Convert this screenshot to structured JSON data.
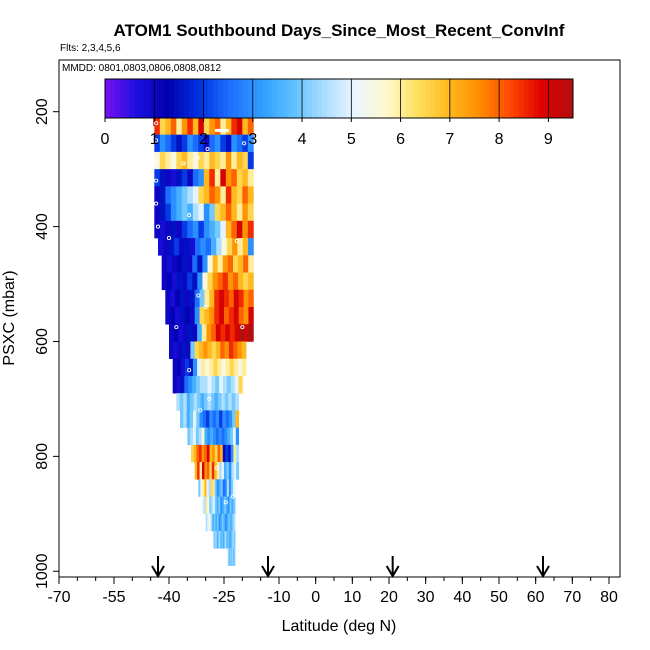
{
  "chart_data": {
    "type": "heatmap",
    "title": "ATOM1 Southbound Days_Since_Most_Recent_ConvInf",
    "flights_label": "Flts: 2,3,4,5,6",
    "dates_label": "MMDD: 0801,0803,0806,0808,0812",
    "xlabel": "Latitude (deg N)",
    "ylabel": "PSXC (mbar)",
    "xlim": [
      -70,
      83
    ],
    "ylim": [
      1010,
      110
    ],
    "x_ticks": [
      -70,
      -55,
      -40,
      -25,
      -10,
      0,
      10,
      20,
      30,
      40,
      50,
      60,
      70,
      80
    ],
    "y_ticks": [
      200,
      400,
      600,
      800,
      1000
    ],
    "colorbar": {
      "min": 0,
      "max": 9.5,
      "ticks": [
        0,
        1,
        2,
        3,
        4,
        5,
        6,
        7,
        8,
        9
      ],
      "colors": [
        "#7b0ff0",
        "#1e10e0",
        "#0000b0",
        "#0030e0",
        "#1e70ff",
        "#2f9cff",
        "#5cc0ff",
        "#a8dcff",
        "#eaf6ff",
        "#fff9d0",
        "#ffe060",
        "#ffba20",
        "#ff8e00",
        "#ff4800",
        "#e00000",
        "#b20f0f"
      ]
    },
    "arrows_lat": [
      -43,
      -13,
      21,
      62
    ],
    "curtain": {
      "lat_range": [
        -44,
        -16
      ],
      "rows": [
        {
          "p": 225,
          "lat_min": -44,
          "lat_max": -17,
          "values": [
            8.5,
            6.5,
            7.0,
            8.0,
            6.0,
            7.5,
            8.5,
            7.0,
            9.0,
            6.5,
            7.5,
            8.0,
            6.0,
            7.0,
            8.5,
            9.0,
            7.0,
            8.0
          ]
        },
        {
          "p": 255,
          "lat_min": -44,
          "lat_max": -17,
          "values": [
            2.0,
            3.0,
            2.5,
            2.0,
            1.5,
            2.0,
            3.0,
            2.5,
            2.0,
            1.0,
            2.5,
            3.0,
            2.0,
            1.5,
            3.0,
            2.5,
            2.0,
            3.0
          ]
        },
        {
          "p": 285,
          "lat_min": -44,
          "lat_max": -17,
          "values": [
            5.5,
            6.5,
            6.0,
            5.5,
            6.5,
            7.0,
            6.0,
            5.5,
            6.5,
            6.0,
            7.0,
            6.5,
            6.0,
            7.5,
            6.0,
            7.0,
            6.5,
            2.0
          ]
        },
        {
          "p": 315,
          "lat_min": -44,
          "lat_max": -17,
          "values": [
            2.0,
            1.5,
            1.0,
            0.8,
            1.5,
            2.0,
            1.0,
            2.5,
            3.0,
            7.0,
            8.5,
            6.0,
            9.0,
            7.5,
            8.0,
            6.5,
            7.0,
            6.0
          ]
        },
        {
          "p": 345,
          "lat_min": -44,
          "lat_max": -17,
          "values": [
            1.0,
            1.5,
            2.5,
            3.0,
            3.5,
            4.0,
            4.5,
            5.0,
            6.5,
            7.0,
            8.0,
            7.5,
            6.0,
            8.5,
            7.0,
            6.5,
            8.0,
            7.0
          ]
        },
        {
          "p": 375,
          "lat_min": -44,
          "lat_max": -17,
          "values": [
            1.0,
            1.5,
            2.0,
            3.0,
            3.5,
            4.0,
            3.5,
            4.5,
            5.0,
            3.0,
            4.0,
            6.5,
            7.0,
            8.0,
            7.0,
            6.0,
            7.5,
            6.5
          ]
        },
        {
          "p": 405,
          "lat_min": -44,
          "lat_max": -17,
          "values": [
            1.0,
            0.8,
            1.0,
            1.5,
            1.0,
            2.0,
            2.5,
            3.0,
            2.0,
            3.0,
            3.5,
            4.0,
            5.0,
            7.0,
            8.0,
            9.0,
            7.5,
            8.5
          ]
        },
        {
          "p": 435,
          "lat_min": -43,
          "lat_max": -17,
          "values": [
            0.8,
            1.0,
            1.5,
            2.0,
            1.0,
            1.5,
            0.8,
            2.5,
            3.0,
            2.5,
            3.5,
            4.5,
            5.5,
            6.5,
            7.5,
            6.0,
            7.0,
            3.0
          ]
        },
        {
          "p": 465,
          "lat_min": -42,
          "lat_max": -17,
          "values": [
            1.0,
            0.8,
            1.0,
            1.2,
            1.5,
            1.0,
            2.5,
            1.5,
            3.0,
            5.5,
            7.0,
            6.0,
            7.5,
            8.0,
            6.5,
            7.0,
            8.0,
            6.0
          ]
        },
        {
          "p": 495,
          "lat_min": -42,
          "lat_max": -17,
          "values": [
            1.0,
            1.2,
            0.8,
            1.5,
            1.0,
            2.0,
            1.5,
            3.0,
            5.5,
            6.5,
            7.5,
            8.0,
            8.5,
            7.5,
            8.0,
            7.0,
            6.5,
            7.0
          ]
        },
        {
          "p": 525,
          "lat_min": -41,
          "lat_max": -17,
          "values": [
            1.0,
            0.8,
            1.2,
            1.5,
            1.0,
            1.5,
            2.5,
            4.0,
            6.0,
            7.0,
            8.5,
            9.0,
            8.5,
            8.0,
            9.0,
            8.5,
            7.5,
            8.0
          ]
        },
        {
          "p": 555,
          "lat_min": -41,
          "lat_max": -17,
          "values": [
            1.0,
            1.2,
            0.8,
            1.5,
            1.2,
            1.0,
            3.0,
            6.5,
            7.0,
            7.5,
            8.5,
            9.0,
            8.0,
            8.5,
            9.0,
            8.0,
            7.5,
            9.0
          ]
        },
        {
          "p": 585,
          "lat_min": -40,
          "lat_max": -17,
          "values": [
            1.0,
            1.2,
            0.8,
            1.0,
            1.5,
            1.0,
            3.5,
            6.0,
            7.5,
            8.0,
            9.0,
            8.5,
            9.0,
            8.5,
            9.0,
            9.5,
            9.2,
            9.5
          ]
        },
        {
          "p": 615,
          "lat_min": -40,
          "lat_max": -19,
          "values": [
            1.0,
            0.8,
            1.0,
            1.5,
            1.0,
            4.0,
            6.5,
            7.0,
            7.5,
            7.0,
            6.5,
            7.0,
            8.0,
            7.5,
            8.5,
            8.0,
            7.5,
            7.0
          ]
        },
        {
          "p": 645,
          "lat_min": -39,
          "lat_max": -19,
          "values": [
            1.0,
            1.2,
            0.8,
            2.0,
            1.5,
            3.0,
            5.0,
            6.0,
            5.5,
            6.0,
            6.5,
            6.0,
            5.5,
            6.0,
            6.5,
            6.0,
            5.5,
            6.0
          ]
        },
        {
          "p": 675,
          "lat_min": -39,
          "lat_max": -20,
          "values": [
            1.0,
            0.8,
            1.5,
            2.5,
            3.0,
            3.5,
            4.0,
            4.5,
            4.5,
            5.0,
            4.5,
            4.0,
            5.0,
            4.5,
            4.0,
            4.5,
            5.0,
            6.5
          ]
        },
        {
          "p": 705,
          "lat_min": -38,
          "lat_max": -21,
          "values": [
            4.5,
            4.0,
            4.5,
            3.5,
            4.0,
            4.5,
            4.0,
            3.5,
            4.0,
            4.5,
            4.0,
            3.5,
            4.0,
            4.5,
            4.0,
            4.5,
            4.0,
            4.5
          ]
        },
        {
          "p": 735,
          "lat_min": -37,
          "lat_max": -21,
          "values": [
            4.0,
            4.5,
            3.5,
            4.0,
            5.0,
            4.0,
            3.0,
            2.5,
            2.0,
            3.0,
            2.5,
            3.0,
            2.0,
            3.0,
            2.5,
            3.0,
            4.0,
            7.0
          ]
        },
        {
          "p": 765,
          "lat_min": -35,
          "lat_max": -21,
          "values": [
            4.0,
            4.5,
            5.0,
            4.0,
            4.5,
            5.5,
            3.5,
            3.0,
            3.5,
            3.0,
            2.5,
            3.0,
            2.5,
            3.0,
            3.5,
            4.0,
            5.0,
            3.0
          ]
        },
        {
          "p": 795,
          "lat_min": -34,
          "lat_max": -21,
          "values": [
            6.5,
            7.0,
            8.0,
            8.5,
            7.5,
            8.0,
            9.0,
            7.0,
            7.5,
            6.5,
            8.0,
            7.0,
            1.0,
            2.0,
            1.5,
            3.0,
            6.0,
            4.5
          ]
        },
        {
          "p": 825,
          "lat_min": -33,
          "lat_max": -21,
          "values": [
            7.0,
            8.5,
            6.0,
            9.0,
            7.5,
            8.0,
            6.5,
            8.5,
            7.0,
            6.0,
            4.5,
            5.0,
            3.5,
            4.0,
            3.0,
            4.5,
            5.0,
            4.0
          ]
        },
        {
          "p": 855,
          "lat_min": -32,
          "lat_max": -22,
          "values": [
            4.0,
            5.5,
            6.0,
            7.0,
            5.0,
            4.5,
            6.5,
            6.0,
            4.0,
            3.0,
            3.5,
            4.0,
            2.5,
            3.0,
            4.5,
            3.0,
            4.0,
            5.0
          ]
        },
        {
          "p": 885,
          "lat_min": -31,
          "lat_max": -22,
          "values": [
            5.0,
            4.5,
            6.0,
            5.5,
            4.0,
            4.5,
            5.0,
            4.0,
            3.5,
            4.0,
            3.0,
            3.5,
            4.0,
            3.5,
            3.0,
            4.0,
            3.5,
            4.0
          ]
        },
        {
          "p": 915,
          "lat_min": -30,
          "lat_max": -22,
          "values": [
            4.5,
            5.0,
            5.5,
            4.5,
            3.5,
            4.0,
            3.5,
            4.0,
            3.0,
            3.5,
            4.0,
            3.5,
            3.0,
            3.5,
            4.0,
            3.5,
            4.0,
            4.5
          ]
        },
        {
          "p": 945,
          "lat_min": -28,
          "lat_max": -22,
          "values": [
            4.5,
            4.0,
            4.5,
            3.5,
            4.0,
            4.5,
            3.5,
            4.0,
            3.5,
            4.0,
            4.5,
            3.5,
            4.0,
            3.5,
            3.5,
            4.0,
            4.5,
            4.0
          ]
        },
        {
          "p": 975,
          "lat_min": -24,
          "lat_max": -22,
          "values": [
            4.5,
            4.0,
            4.5,
            4.0,
            3.5,
            4.0,
            4.5,
            4.0,
            3.5,
            4.0,
            4.5,
            4.0,
            4.5,
            4.0,
            3.5,
            4.0,
            4.5,
            4.0
          ]
        }
      ],
      "markers": [
        {
          "lat": -43.5,
          "p": 220
        },
        {
          "lat": -43.5,
          "p": 250
        },
        {
          "lat": -43.5,
          "p": 285
        },
        {
          "lat": -43.5,
          "p": 320
        },
        {
          "lat": -43.5,
          "p": 360
        },
        {
          "lat": -43.0,
          "p": 400
        },
        {
          "lat": -40.0,
          "p": 420
        },
        {
          "lat": -36.0,
          "p": 290
        },
        {
          "lat": -32.0,
          "p": 280
        },
        {
          "lat": -34.5,
          "p": 380
        },
        {
          "lat": -29.5,
          "p": 265
        },
        {
          "lat": -38.0,
          "p": 575
        },
        {
          "lat": -34.5,
          "p": 650
        },
        {
          "lat": -31.5,
          "p": 720
        },
        {
          "lat": -29.0,
          "p": 700
        },
        {
          "lat": -30.0,
          "p": 540
        },
        {
          "lat": -32.0,
          "p": 520
        },
        {
          "lat": -27.0,
          "p": 820
        },
        {
          "lat": -24.5,
          "p": 880
        },
        {
          "lat": -22.5,
          "p": 870
        },
        {
          "lat": -21.5,
          "p": 425
        },
        {
          "lat": -20.0,
          "p": 575
        },
        {
          "lat": -19.5,
          "p": 255
        }
      ]
    }
  }
}
